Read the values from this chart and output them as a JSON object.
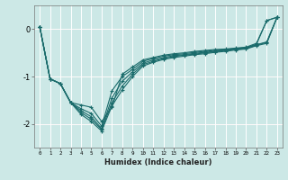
{
  "xlabel": "Humidex (Indice chaleur)",
  "ylabel": "",
  "background_color": "#cce8e6",
  "grid_color": "#b0d8d5",
  "red_line_color": "#cc4444",
  "line_color": "#1a6b6b",
  "xlim": [
    -0.5,
    23.5
  ],
  "ylim": [
    -2.5,
    0.5
  ],
  "yticks": [
    0,
    -1,
    -2
  ],
  "xticks": [
    0,
    1,
    2,
    3,
    4,
    5,
    6,
    7,
    8,
    9,
    10,
    11,
    12,
    13,
    14,
    15,
    16,
    17,
    18,
    19,
    20,
    21,
    22,
    23
  ],
  "series": [
    [
      0.05,
      -1.05,
      -1.15,
      -1.55,
      -1.6,
      -1.65,
      -1.95,
      -1.65,
      -0.95,
      -0.8,
      -0.65,
      -0.6,
      -0.55,
      -0.52,
      -0.5,
      -0.47,
      -0.45,
      -0.43,
      -0.42,
      -0.4,
      -0.38,
      -0.3,
      0.18,
      0.25
    ],
    [
      0.05,
      -1.05,
      -1.15,
      -1.55,
      -1.68,
      -1.78,
      -2.05,
      -1.3,
      -1.0,
      -0.85,
      -0.68,
      -0.62,
      -0.57,
      -0.54,
      -0.52,
      -0.49,
      -0.47,
      -0.45,
      -0.43,
      -0.41,
      -0.39,
      -0.32,
      0.18,
      0.25
    ],
    [
      0.05,
      -1.05,
      -1.15,
      -1.55,
      -1.72,
      -1.85,
      -2.1,
      -1.45,
      -1.1,
      -0.9,
      -0.72,
      -0.65,
      -0.6,
      -0.56,
      -0.54,
      -0.51,
      -0.49,
      -0.47,
      -0.44,
      -0.42,
      -0.4,
      -0.33,
      -0.27,
      0.25
    ],
    [
      0.05,
      -1.05,
      -1.15,
      -1.55,
      -1.76,
      -1.9,
      -2.12,
      -1.55,
      -1.2,
      -0.95,
      -0.75,
      -0.68,
      -0.62,
      -0.58,
      -0.55,
      -0.53,
      -0.5,
      -0.48,
      -0.45,
      -0.43,
      -0.41,
      -0.34,
      -0.28,
      0.25
    ],
    [
      0.05,
      -1.05,
      -1.15,
      -1.55,
      -1.8,
      -1.95,
      -2.15,
      -1.62,
      -1.28,
      -1.0,
      -0.78,
      -0.7,
      -0.64,
      -0.6,
      -0.57,
      -0.54,
      -0.52,
      -0.49,
      -0.47,
      -0.44,
      -0.42,
      -0.35,
      -0.3,
      0.25
    ]
  ]
}
